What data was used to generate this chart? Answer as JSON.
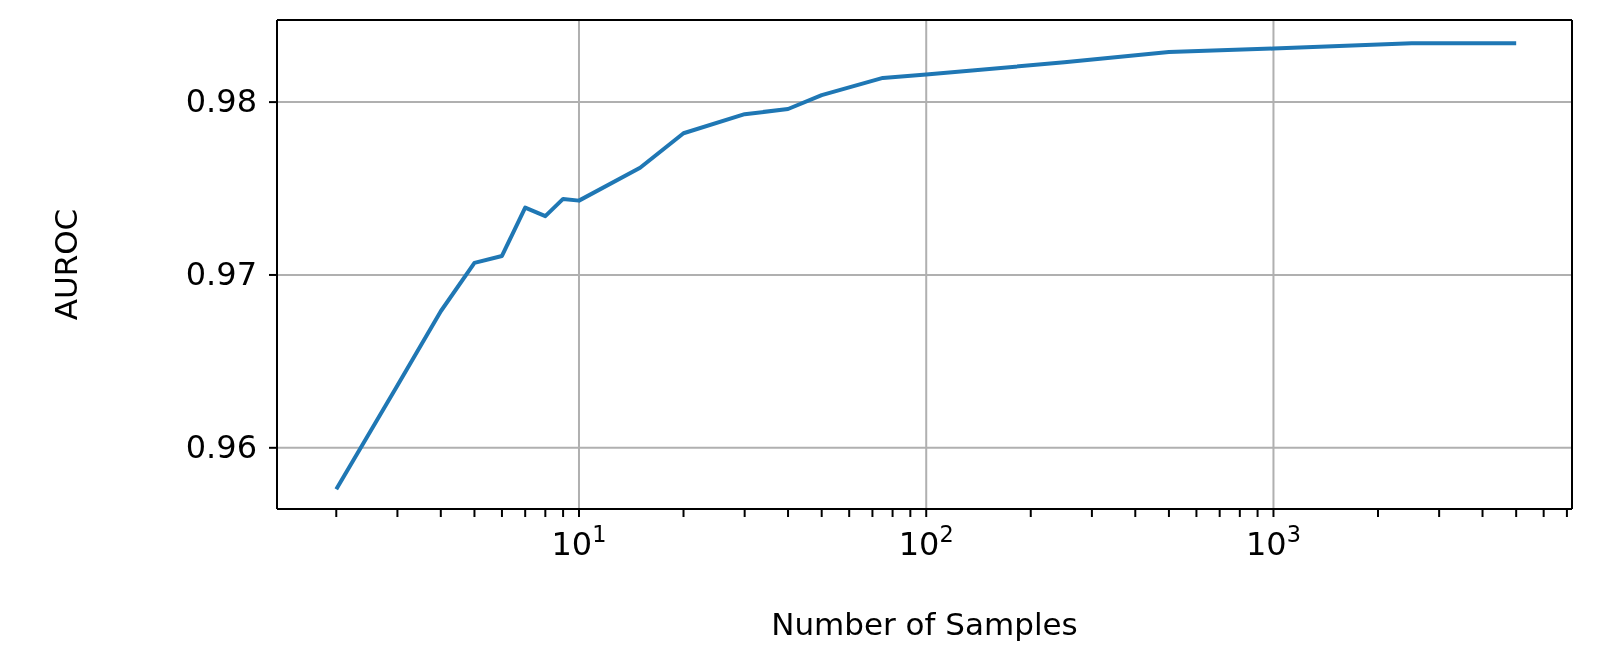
{
  "chart_data": {
    "type": "line",
    "xlabel": "Number of Samples",
    "ylabel": "AUROC",
    "x": [
      2,
      3,
      4,
      5,
      6,
      7,
      8,
      9,
      10,
      15,
      20,
      30,
      40,
      50,
      75,
      100,
      250,
      500,
      1000,
      2500,
      5000
    ],
    "series": [
      {
        "color": "#1f77b4",
        "values": [
          0.9576,
          0.9636,
          0.9679,
          0.9707,
          0.9711,
          0.9739,
          0.9734,
          0.9744,
          0.9743,
          0.9762,
          0.9782,
          0.9793,
          0.9796,
          0.9804,
          0.9814,
          0.9816,
          0.9823,
          0.9829,
          0.9831,
          0.9834,
          0.9834
        ]
      }
    ],
    "log": "x",
    "xlim": [
      1.35,
      7240
    ],
    "ylim": [
      0.95646,
      0.98475
    ],
    "xticks": [
      {
        "value": 2,
        "label": null
      },
      {
        "value": 3,
        "label": null
      },
      {
        "value": 4,
        "label": null
      },
      {
        "value": 5,
        "label": null
      },
      {
        "value": 6,
        "label": null
      },
      {
        "value": 7,
        "label": null
      },
      {
        "value": 8,
        "label": null
      },
      {
        "value": 9,
        "label": null
      },
      {
        "value": 10,
        "label": "10$^{1}$"
      },
      {
        "value": 20,
        "label": null
      },
      {
        "value": 30,
        "label": null
      },
      {
        "value": 40,
        "label": null
      },
      {
        "value": 50,
        "label": null
      },
      {
        "value": 60,
        "label": null
      },
      {
        "value": 70,
        "label": null
      },
      {
        "value": 80,
        "label": null
      },
      {
        "value": 90,
        "label": null
      },
      {
        "value": 100,
        "label": "10$^{2}$"
      },
      {
        "value": 200,
        "label": null
      },
      {
        "value": 300,
        "label": null
      },
      {
        "value": 400,
        "label": null
      },
      {
        "value": 500,
        "label": null
      },
      {
        "value": 600,
        "label": null
      },
      {
        "value": 700,
        "label": null
      },
      {
        "value": 800,
        "label": null
      },
      {
        "value": 900,
        "label": null
      },
      {
        "value": 1000,
        "label": "10$^{3}$"
      },
      {
        "value": 2000,
        "label": null
      },
      {
        "value": 3000,
        "label": null
      },
      {
        "value": 4000,
        "label": null
      },
      {
        "value": 5000,
        "label": null
      },
      {
        "value": 6000,
        "label": null
      },
      {
        "value": 7000,
        "label": null
      }
    ],
    "yticks": [
      0.96,
      0.97,
      0.98
    ],
    "grid": true,
    "marker": "none",
    "line_style": "solid"
  }
}
